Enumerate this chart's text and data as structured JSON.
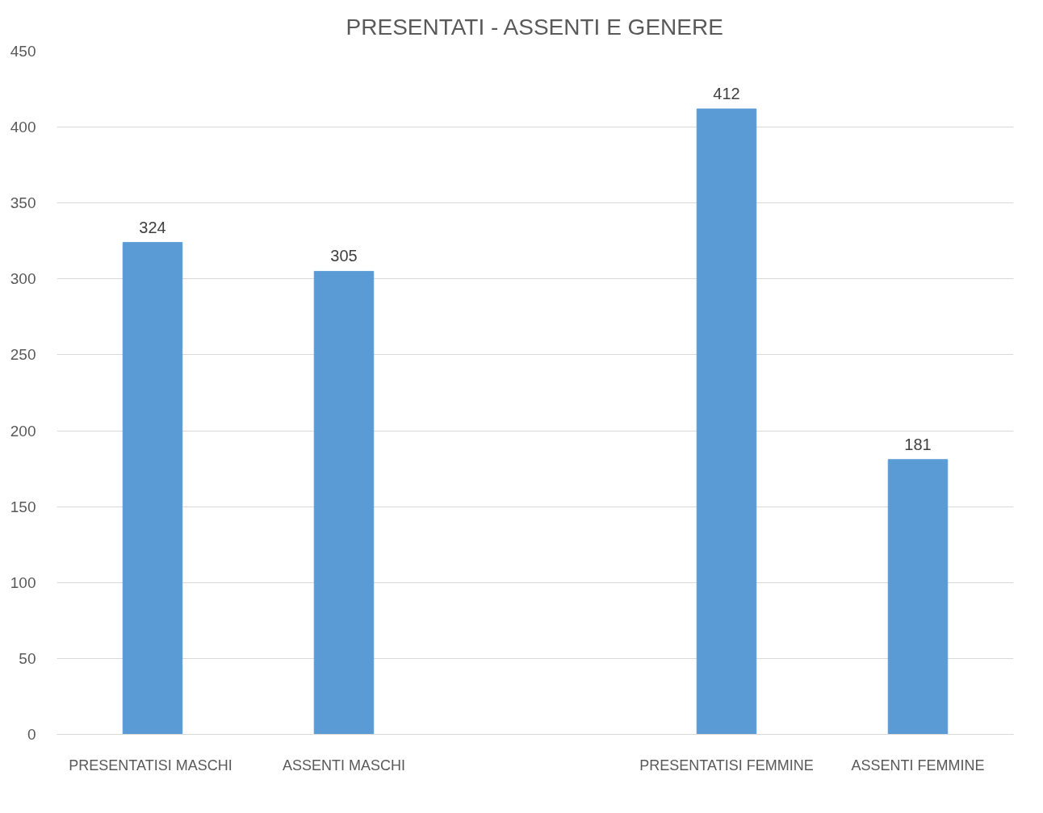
{
  "chart_data": {
    "type": "bar",
    "title": "PRESENTATI - ASSENTI E GENERE",
    "categories": [
      "PRESENTATISI  MASCHI",
      "ASSENTI MASCHI",
      null,
      "PRESENTATISI FEMMINE",
      "ASSENTI FEMMINE"
    ],
    "values": [
      324,
      305,
      null,
      412,
      181
    ],
    "color": "#5b9bd5",
    "ylim": [
      0,
      450
    ],
    "yticks": [
      0,
      50,
      100,
      150,
      200,
      250,
      300,
      350,
      400,
      450
    ],
    "grid": "y",
    "data_labels": true
  }
}
